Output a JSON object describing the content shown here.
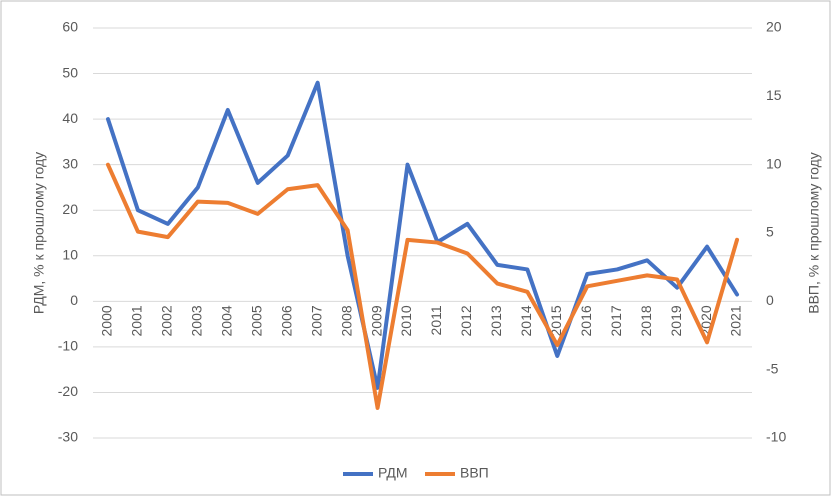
{
  "chart_data": {
    "type": "line",
    "categories": [
      "2000",
      "2001",
      "2002",
      "2003",
      "2004",
      "2005",
      "2006",
      "2007",
      "2008",
      "2009",
      "2010",
      "2011",
      "2012",
      "2013",
      "2014",
      "2015",
      "2016",
      "2017",
      "2018",
      "2019",
      "2020",
      "2021"
    ],
    "series": [
      {
        "name": "РДМ",
        "color": "#4472c4",
        "axis": "y",
        "values": [
          40,
          20,
          17,
          25,
          42,
          26,
          32,
          48,
          10,
          -19,
          30,
          13,
          17,
          8,
          7,
          -12,
          6,
          7,
          9,
          3,
          12,
          1.5
        ]
      },
      {
        "name": "ВВП",
        "color": "#ed7d31",
        "axis": "y2",
        "values": [
          10,
          5.1,
          4.7,
          7.3,
          7.2,
          6.4,
          8.2,
          8.5,
          5.2,
          -7.8,
          4.5,
          4.3,
          3.5,
          1.3,
          0.7,
          -3.2,
          1.1,
          1.5,
          1.9,
          1.6,
          -3.0,
          4.5
        ]
      }
    ],
    "ylabel": "РДМ, % к прошлому году",
    "y2label": "ВВП, % к прошлому году",
    "ylim": [
      -30,
      60
    ],
    "yticks": [
      -30,
      -20,
      -10,
      0,
      10,
      20,
      30,
      40,
      50,
      60
    ],
    "y2lim": [
      -10,
      20
    ],
    "y2ticks": [
      -10,
      -5,
      0,
      5,
      10,
      15,
      20
    ],
    "grid": true,
    "legend": "bottom"
  }
}
